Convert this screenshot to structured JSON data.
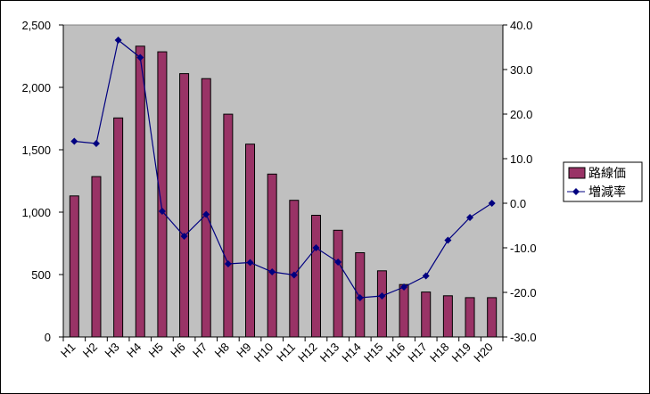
{
  "chart_data": {
    "type": "bar",
    "categories": [
      "H1",
      "H2",
      "H3",
      "H4",
      "H5",
      "H6",
      "H7",
      "H8",
      "H9",
      "H10",
      "H11",
      "H12",
      "H13",
      "H14",
      "H15",
      "H16",
      "H17",
      "H18",
      "H19",
      "H20"
    ],
    "series": [
      {
        "name": "路線価",
        "type": "bar",
        "axis": "left",
        "color": "#993366",
        "values": [
          1130,
          1285,
          1755,
          2330,
          2285,
          2110,
          2070,
          1785,
          1545,
          1305,
          1095,
          975,
          855,
          675,
          530,
          420,
          360,
          330,
          315,
          315
        ]
      },
      {
        "name": "増減率",
        "type": "line",
        "axis": "right",
        "color": "#000080",
        "marker": "diamond",
        "values": [
          13.9,
          13.4,
          36.6,
          32.7,
          -1.8,
          -7.4,
          -2.5,
          -13.6,
          -13.3,
          -15.4,
          -16.1,
          -10.0,
          -13.2,
          -21.2,
          -20.8,
          -18.8,
          -16.3,
          -8.3,
          -3.2,
          0.0
        ]
      }
    ],
    "y_left": {
      "min": 0,
      "max": 2500,
      "ticks": [
        "0",
        "500",
        "1,000",
        "1,500",
        "2,000",
        "2,500"
      ]
    },
    "y_right": {
      "min": -30,
      "max": 40,
      "ticks": [
        "-30.0",
        "-20.0",
        "-10.0",
        "0.0",
        "10.0",
        "20.0",
        "30.0",
        "40.0"
      ]
    },
    "plot_background": "#c0c0c0",
    "grid": false,
    "legend_position": "right",
    "title": "",
    "xlabel": "",
    "ylabel": ""
  }
}
